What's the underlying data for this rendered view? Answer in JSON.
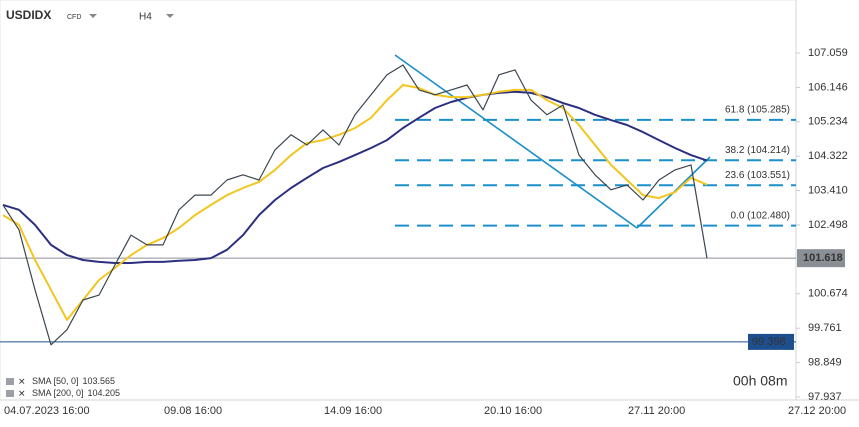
{
  "chart_data": {
    "type": "line",
    "symbol": "USDIDX",
    "instrument": "CFD",
    "timeframe": "H4",
    "categories": [
      "04.07.2023 16:00",
      null,
      null,
      null,
      null,
      null,
      null,
      null,
      null,
      null,
      "09.08 16:00",
      null,
      null,
      null,
      null,
      null,
      null,
      null,
      null,
      null,
      "14.09 16:00",
      null,
      null,
      null,
      null,
      null,
      null,
      null,
      null,
      null,
      "20.10 16:00",
      null,
      null,
      null,
      null,
      null,
      null,
      null,
      null,
      "27.11 20:00",
      null,
      null,
      null,
      null,
      null,
      null,
      null,
      null,
      null,
      "27.12 20:00"
    ],
    "series": [
      {
        "name": "USDIDX",
        "color": "#3c4650",
        "values": [
          103.03,
          102.37,
          100.78,
          99.32,
          99.72,
          100.51,
          100.64,
          101.44,
          102.23,
          101.97,
          101.97,
          102.9,
          103.29,
          103.29,
          103.69,
          103.83,
          103.69,
          104.49,
          104.89,
          104.62,
          105.02,
          104.62,
          105.42,
          105.95,
          106.48,
          106.74,
          106.08,
          105.95,
          106.08,
          106.21,
          105.55,
          106.48,
          106.61,
          105.81,
          105.42,
          105.68,
          104.35,
          103.83,
          103.43,
          103.56,
          103.16,
          103.69,
          103.96,
          104.09,
          101.618,
          null,
          null,
          null,
          null,
          null
        ]
      },
      {
        "name": "SMA [50, 0]",
        "color": "#f2c61f",
        "values": [
          102.76,
          102.5,
          101.57,
          100.78,
          99.98,
          100.51,
          101.04,
          101.36,
          101.7,
          101.97,
          102.15,
          102.42,
          102.76,
          103.03,
          103.29,
          103.48,
          103.64,
          103.96,
          104.35,
          104.67,
          104.75,
          104.89,
          105.07,
          105.34,
          105.81,
          106.21,
          106.13,
          105.95,
          105.89,
          105.89,
          105.95,
          106.03,
          106.08,
          106.08,
          105.81,
          105.6,
          105.15,
          104.62,
          104.09,
          103.69,
          103.29,
          103.21,
          103.37,
          103.75,
          103.565,
          null,
          null,
          null,
          null,
          null
        ]
      },
      {
        "name": "SMA [200, 0]",
        "color": "#2c2f80",
        "values": [
          103.03,
          102.9,
          102.5,
          101.97,
          101.7,
          101.57,
          101.52,
          101.49,
          101.49,
          101.52,
          101.52,
          101.55,
          101.57,
          101.62,
          101.84,
          102.23,
          102.76,
          103.16,
          103.48,
          103.75,
          104.01,
          104.17,
          104.35,
          104.54,
          104.75,
          105.07,
          105.34,
          105.6,
          105.76,
          105.87,
          105.95,
          106.0,
          106.03,
          106.0,
          105.89,
          105.73,
          105.6,
          105.42,
          105.28,
          105.15,
          104.96,
          104.75,
          104.54,
          104.35,
          104.205,
          null,
          null,
          null,
          null,
          null
        ]
      }
    ],
    "indicators": [
      {
        "label": "SMA [50, 0]",
        "value": 103.565
      },
      {
        "label": "SMA [200, 0]",
        "value": 104.205
      }
    ],
    "fib_levels": [
      {
        "value": 105.285,
        "label": "61.8 (105.285)"
      },
      {
        "value": 104.214,
        "label": "38.2 (104.214)"
      },
      {
        "value": 103.551,
        "label": "23.6 (103.551)"
      },
      {
        "value": 102.48,
        "label": "0.0 (102.480)"
      }
    ],
    "last_price": 101.618,
    "alert_level": 99.398,
    "countdown": "00h 08m",
    "ylim": [
      97.857,
      108.464
    ],
    "yticks": [
      107.059,
      106.146,
      105.234,
      104.322,
      {
        "value": 103.41,
        "label": "103.410"
      },
      102.498,
      100.674,
      99.761,
      98.849,
      97.937
    ]
  }
}
